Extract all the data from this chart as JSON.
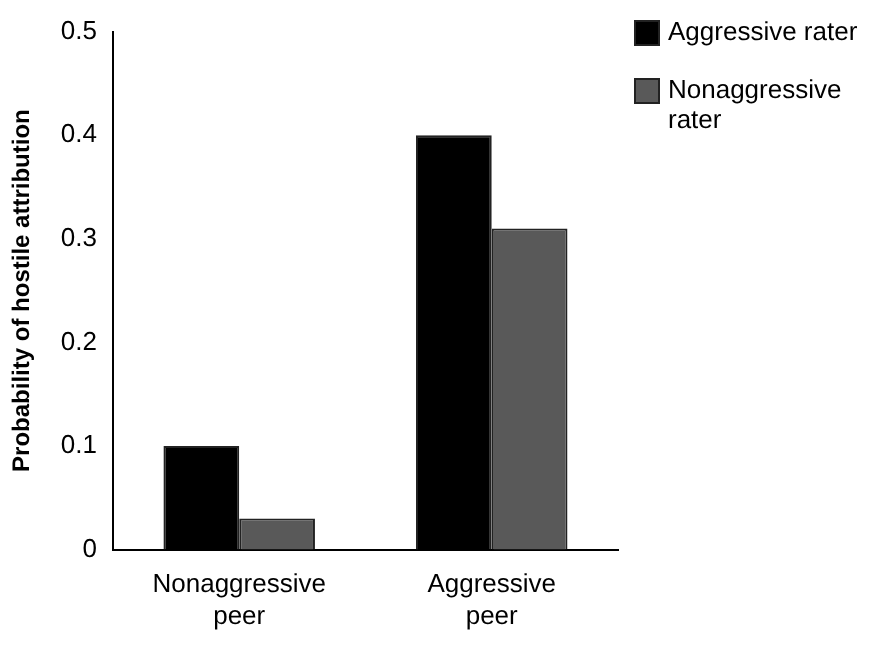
{
  "chart_data": {
    "type": "bar",
    "ylabel": "Probability of hostile attribution",
    "categories": [
      "Nonaggressive peer",
      "Aggressive peer"
    ],
    "series": [
      {
        "name": "Aggressive rater",
        "color": "#000000",
        "values": [
          0.1,
          0.4
        ]
      },
      {
        "name": "Nonaggressive rater",
        "color": "#595959",
        "values": [
          0.03,
          0.31
        ]
      }
    ],
    "ylim": [
      0,
      0.5
    ],
    "yticks": [
      0,
      0.1,
      0.2,
      0.3,
      0.4,
      0.5
    ],
    "grid": false,
    "legend": "top right"
  }
}
